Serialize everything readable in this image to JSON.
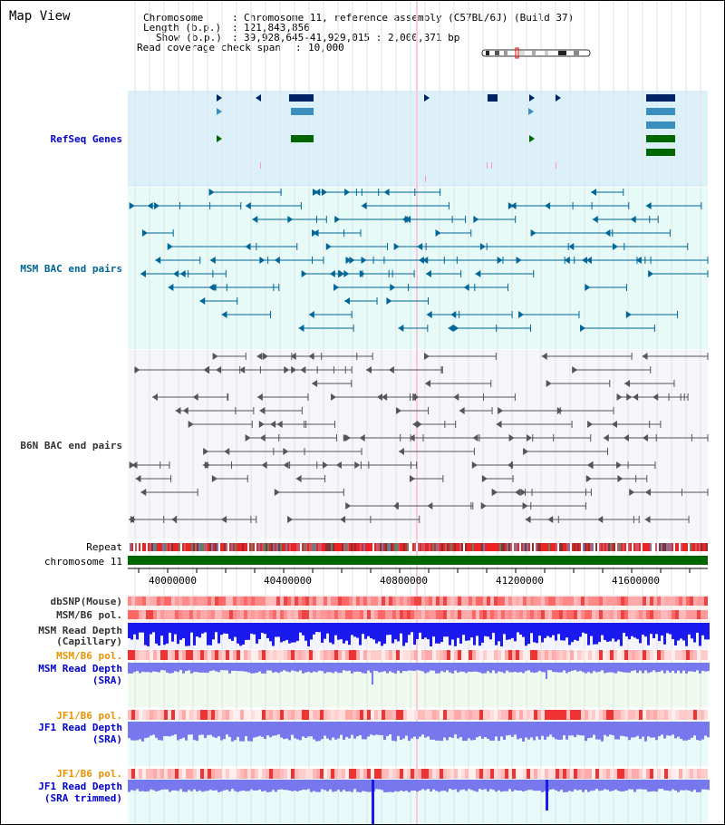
{
  "title": "Map View",
  "info": {
    "chromosome_label": "Chromosome",
    "chromosome_value": "Chromosome 11, reference assembly (C57BL/6J) (Build 37)",
    "length_label": "Length (b.p.)",
    "length_value": "121,843,856",
    "show_label": "Show (b.p.)",
    "show_value": "39,928,645-41,929,015 : 2,000,371 bp",
    "coverage_label": "Read coverage check span",
    "coverage_value": "10,000"
  },
  "tracks": {
    "refseq": "RefSeq Genes",
    "msm_bac": "MSM BAC end pairs",
    "b6n_bac": "B6N BAC end pairs",
    "repeat": "Repeat",
    "chromosome": "chromosome 11",
    "dbsnp": "dbSNP(Mouse)",
    "msm_b6_pol_1": "MSM/B6 pol.",
    "msm_read_depth_cap_1": "MSM Read Depth",
    "msm_read_depth_cap_2": "(Capillary)",
    "msm_b6_pol_2": "MSM/B6 pol.",
    "msm_read_depth_sra_1": "MSM Read Depth",
    "msm_read_depth_sra_2": "(SRA)",
    "jf1_b6_pol_1": "JF1/B6 pol.",
    "jf1_read_depth_sra_1": "JF1 Read Depth",
    "jf1_read_depth_sra_2": "(SRA)",
    "jf1_b6_pol_2": "JF1/B6 pol.",
    "jf1_read_depth_trim_1": "JF1 Read Depth",
    "jf1_read_depth_trim_2": "(SRA trimmed)"
  },
  "axis": {
    "ticks": [
      "40000000",
      "40400000",
      "40800000",
      "41200000",
      "41600000"
    ]
  },
  "colors": {
    "refseq_bg": "#dcf0fa",
    "msm_bg": "#e6faf8",
    "b6n_bg": "#f5f5fa",
    "gene_navy": "#002266",
    "gene_blue": "#3a8fbf",
    "gene_green": "#006600",
    "msm_line": "#006699",
    "b6n_line": "#555555",
    "chromosome_bar": "#006600",
    "depth_blue": "#1a1aee",
    "depth_light": "#7777ee"
  }
}
